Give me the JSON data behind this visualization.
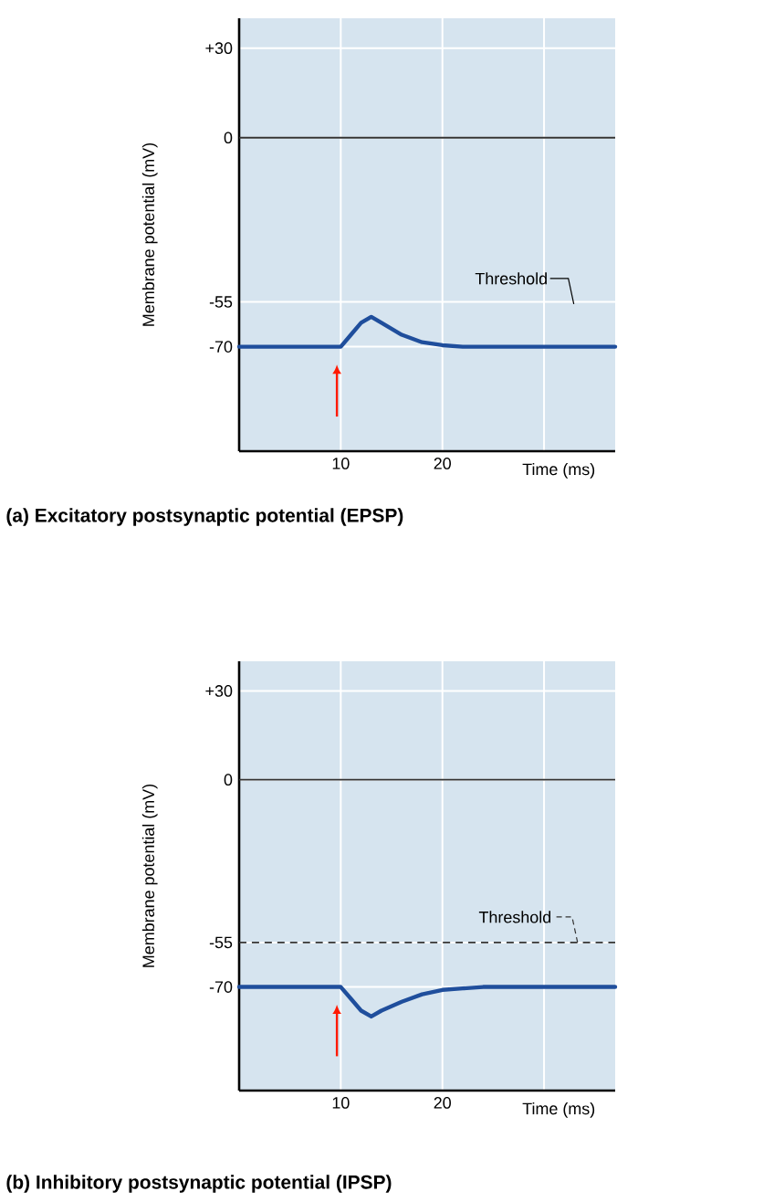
{
  "chart_data": [
    {
      "type": "line",
      "title": "(a) Excitatory postsynaptic potential (EPSP)",
      "xlabel": "Time (ms)",
      "ylabel": "Membrane potential (mV)",
      "xlim": [
        0,
        37
      ],
      "ylim": [
        -105,
        40
      ],
      "xticks": [
        10,
        20,
        {
          "value": 30,
          "label": null
        }
      ],
      "yticks": [
        {
          "value": 30,
          "label": "+30"
        },
        0,
        -55,
        -70
      ],
      "grid": true,
      "series": [
        {
          "color": "#1f4e9c",
          "x": [
            0,
            10,
            11,
            12,
            13,
            14,
            16,
            18,
            20,
            22,
            24,
            37
          ],
          "values": [
            -70,
            -70,
            -66,
            -62,
            -60,
            -62,
            -66,
            -68.5,
            -69.5,
            -70,
            -70,
            -70
          ]
        }
      ],
      "ref_lines": [
        {
          "axis": "y",
          "value": 0,
          "color": "#333333"
        }
      ],
      "annotations": [
        "Threshold"
      ]
    },
    {
      "type": "line",
      "title": "(b) Inhibitory postsynaptic potential (IPSP)",
      "xlabel": "Time (ms)",
      "ylabel": "Membrane potential (mV)",
      "xlim": [
        0,
        37
      ],
      "ylim": [
        -105,
        40
      ],
      "xticks": [
        10,
        20,
        {
          "value": 30,
          "label": null
        }
      ],
      "yticks": [
        {
          "value": 30,
          "label": "+30"
        },
        0,
        -55,
        -70
      ],
      "grid": true,
      "series": [
        {
          "color": "#1f4e9c",
          "x": [
            0,
            10,
            11,
            12,
            13,
            14,
            16,
            18,
            20,
            22,
            24,
            37
          ],
          "values": [
            -70,
            -70,
            -74,
            -78,
            -80,
            -78,
            -75,
            -72.5,
            -71,
            -70.5,
            -70,
            -70
          ]
        }
      ],
      "ref_lines": [
        {
          "axis": "y",
          "value": 0,
          "color": "#333333"
        },
        {
          "axis": "y",
          "value": -55,
          "label": "Threshold",
          "color": "#333333",
          "line_style": "dashed"
        }
      ]
    }
  ]
}
